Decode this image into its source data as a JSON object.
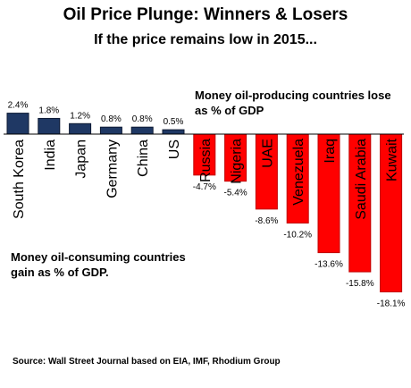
{
  "title": "Oil Price Plunge: Winners & Losers",
  "subtitle": "If the price  remains low in 2015...",
  "gainers_note": "Money oil-consuming countries gain as % of GDP.",
  "losers_note": "Money oil-producing countries lose as % of GDP",
  "source": "Source: Wall Street Journal based on EIA, IMF, Rhodium Group",
  "colors": {
    "gain": "#1f3864",
    "loss": "#ff0000",
    "loss_edge": "#c00000"
  },
  "chart_data": {
    "type": "bar",
    "categories": [
      "South Korea",
      "India",
      "Japan",
      "Germany",
      "China",
      "US",
      "Russia",
      "Nigeria",
      "UAE",
      "Venezuela",
      "Iraq",
      "Saudi Arabia",
      "Kuwait"
    ],
    "values": [
      2.4,
      1.8,
      1.2,
      0.8,
      0.8,
      0.5,
      -4.7,
      -5.4,
      -8.6,
      -10.2,
      -13.6,
      -15.8,
      -18.1
    ],
    "value_labels": [
      "2.4%",
      "1.8%",
      "1.2%",
      "0.8%",
      "0.8%",
      "0.5%",
      "-4.7%",
      "-5.4%",
      "-8.6%",
      "-10.2%",
      "-13.6%",
      "-15.8%",
      "-18.1%"
    ],
    "title": "Oil Price Plunge: Winners & Losers",
    "subtitle": "If the price  remains low in 2015...",
    "xlabel": "",
    "ylabel": "",
    "ylim": [
      -18.1,
      2.4
    ],
    "grid": false,
    "legend": "none"
  }
}
